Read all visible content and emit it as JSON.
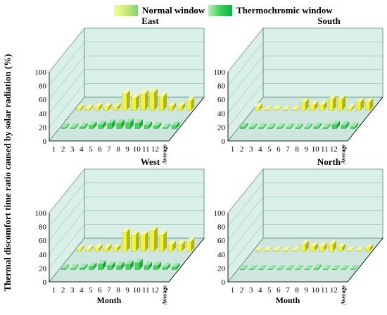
{
  "legend": {
    "normal": "Normal window",
    "thermo": "Thermochromic window"
  },
  "colors": {
    "normal": "#f2f536",
    "thermo": "#3fd95a",
    "wall_fill": "#d9efe7",
    "wall_stroke": "#4a8a78"
  },
  "ylabel": "Thermal discomfort time ratio caused by solar radiation (%)",
  "chart_data": [
    {
      "type": "bar",
      "title": "East",
      "xlabel": "",
      "categories": [
        "1",
        "2",
        "3",
        "4",
        "5",
        "6",
        "7",
        "8",
        "9",
        "10",
        "11",
        "12",
        "Average"
      ],
      "ylim": [
        0,
        100
      ],
      "yticks": [
        0,
        20,
        40,
        60,
        80,
        100
      ],
      "series": [
        {
          "name": "Normal window",
          "values": [
            3,
            3,
            5,
            5,
            5,
            24,
            18,
            24,
            26,
            20,
            6,
            6,
            14
          ]
        },
        {
          "name": "Thermochromic window",
          "values": [
            2,
            2,
            3,
            5,
            6,
            8,
            8,
            9,
            8,
            5,
            4,
            2,
            5
          ]
        }
      ]
    },
    {
      "type": "bar",
      "title": "South",
      "xlabel": "",
      "categories": [
        "1",
        "2",
        "3",
        "4",
        "5",
        "6",
        "7",
        "8",
        "9",
        "10",
        "11",
        "12",
        "Average"
      ],
      "ylim": [
        0,
        100
      ],
      "yticks": [
        0,
        20,
        40,
        60,
        80,
        100
      ],
      "series": [
        {
          "name": "Normal window",
          "values": [
            5,
            1,
            1,
            1,
            1,
            12,
            8,
            8,
            16,
            16,
            3,
            12,
            12
          ]
        },
        {
          "name": "Thermochromic window",
          "values": [
            3,
            2,
            2,
            2,
            2,
            2,
            2,
            2,
            3,
            2,
            6,
            5,
            3
          ]
        }
      ]
    },
    {
      "type": "bar",
      "title": "West",
      "xlabel": "Month",
      "categories": [
        "1",
        "2",
        "3",
        "4",
        "5",
        "6",
        "7",
        "8",
        "9",
        "10",
        "11",
        "12",
        "Average"
      ],
      "ylim": [
        0,
        100
      ],
      "yticks": [
        0,
        20,
        40,
        60,
        80,
        100
      ],
      "series": [
        {
          "name": "Normal window",
          "values": [
            3,
            3,
            5,
            5,
            5,
            28,
            24,
            24,
            30,
            24,
            10,
            10,
            14
          ]
        },
        {
          "name": "Thermochromic window",
          "values": [
            2,
            2,
            3,
            5,
            8,
            6,
            6,
            8,
            10,
            6,
            6,
            4,
            4
          ]
        }
      ]
    },
    {
      "type": "bar",
      "title": "North",
      "xlabel": "Month",
      "categories": [
        "1",
        "2",
        "3",
        "4",
        "5",
        "6",
        "7",
        "8",
        "9",
        "10",
        "11",
        "12",
        "Average"
      ],
      "ylim": [
        0,
        100
      ],
      "yticks": [
        0,
        20,
        40,
        60,
        80,
        100
      ],
      "series": [
        {
          "name": "Normal window",
          "values": [
            1,
            1,
            1,
            1,
            1,
            10,
            7,
            7,
            10,
            6,
            1,
            1,
            5
          ]
        },
        {
          "name": "Thermochromic window",
          "values": [
            1,
            1,
            1,
            1,
            1,
            1,
            1,
            1,
            2,
            1,
            1,
            1,
            1
          ]
        }
      ]
    }
  ]
}
